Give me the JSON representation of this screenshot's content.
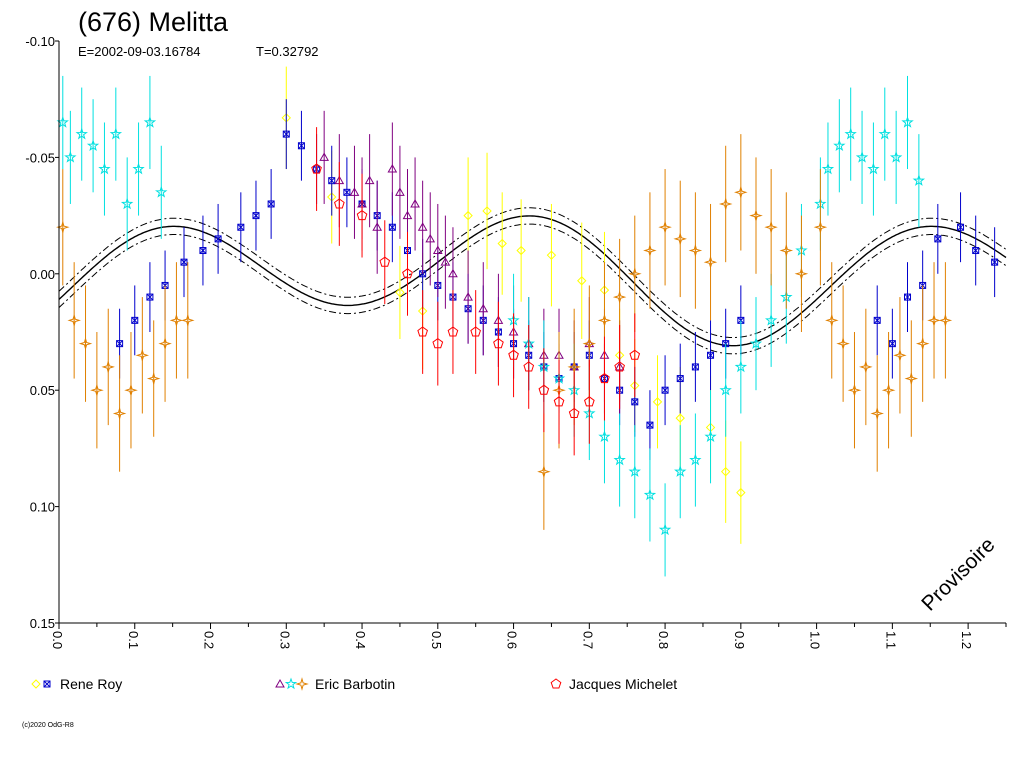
{
  "chart_data": {
    "type": "scatter",
    "title": "(676) Melitta",
    "subtitle_epoch": "E=2002-09-03.16784",
    "subtitle_period": "T=0.32792",
    "stamp": "Provisoire",
    "copyright": "(c)2020 OdG-R8",
    "xlim": [
      0.0,
      1.25
    ],
    "ylim": [
      -0.1,
      0.15
    ],
    "y_inverted": true,
    "x_ticks": [
      "0.0",
      "0.1",
      "0.2",
      "0.3",
      "0.4",
      "0.5",
      "0.6",
      "0.7",
      "0.8",
      "0.9",
      "1.0",
      "1.1",
      "1.2"
    ],
    "y_ticks": [
      "-0.10",
      "-0.05",
      "0.00",
      "0.05",
      "0.10",
      "0.15"
    ],
    "grid": false,
    "legend_position": "bottom",
    "legend": [
      {
        "label": "Rene Roy",
        "markers": [
          {
            "shape": "diamond",
            "color": "#ffff00"
          },
          {
            "shape": "square-x",
            "color": "#0000cc"
          }
        ]
      },
      {
        "label": "Eric Barbotin",
        "markers": [
          {
            "shape": "triangle",
            "color": "#800080"
          },
          {
            "shape": "star",
            "color": "#00e0e0"
          },
          {
            "shape": "star4",
            "color": "#e08000"
          }
        ]
      },
      {
        "label": "Jacques Michelet",
        "markers": [
          {
            "shape": "pentagon",
            "color": "#ff0000"
          }
        ]
      }
    ],
    "fit_curve": {
      "mean": 0.0,
      "harmonics": [
        {
          "n": 1,
          "a": 0.008,
          "b": -0.004
        },
        {
          "n": 2,
          "a": 0.003,
          "b": -0.022
        }
      ],
      "band": 0.0035
    },
    "series": [
      {
        "shape": "diamond",
        "color": "#ffff00",
        "x": [
          0.3,
          0.36,
          0.45,
          0.48,
          0.54,
          0.565,
          0.585,
          0.61,
          0.65,
          0.69,
          0.72,
          0.74,
          0.76,
          0.79,
          0.82,
          0.86,
          0.88,
          0.9
        ],
        "y": [
          -0.067,
          -0.033,
          0.008,
          0.016,
          -0.025,
          -0.027,
          -0.013,
          -0.01,
          -0.008,
          0.003,
          0.007,
          0.035,
          0.048,
          0.055,
          0.062,
          0.066,
          0.085,
          0.094
        ],
        "err": [
          0.022,
          0.02,
          0.02,
          0.025,
          0.025,
          0.025,
          0.022,
          0.022,
          0.022,
          0.025,
          0.025,
          0.02,
          0.02,
          0.02,
          0.022,
          0.022,
          0.022,
          0.022
        ]
      },
      {
        "shape": "square-x",
        "color": "#0000cc",
        "x": [
          0.08,
          0.1,
          0.12,
          0.14,
          0.165,
          0.19,
          0.21,
          0.24,
          0.26,
          0.28,
          0.3,
          0.32,
          0.34,
          0.36,
          0.38,
          0.4,
          0.42,
          0.44,
          0.46,
          0.48,
          0.5,
          0.52,
          0.54,
          0.56,
          0.58,
          0.6,
          0.62,
          0.64,
          0.66,
          0.68,
          0.7,
          0.72,
          0.74,
          0.76,
          0.78,
          0.8,
          0.82,
          0.84,
          0.86,
          0.88,
          0.9,
          1.08,
          1.1,
          1.12,
          1.14,
          1.16,
          1.19,
          1.21,
          1.235
        ],
        "x_repeat_note": "",
        "y": [
          0.03,
          0.02,
          0.01,
          0.005,
          -0.005,
          -0.01,
          -0.015,
          -0.02,
          -0.025,
          -0.03,
          -0.06,
          -0.055,
          -0.045,
          -0.04,
          -0.035,
          -0.03,
          -0.025,
          -0.02,
          -0.01,
          0.0,
          0.005,
          0.01,
          0.015,
          0.02,
          0.025,
          0.03,
          0.035,
          0.04,
          0.045,
          0.04,
          0.035,
          0.045,
          0.05,
          0.055,
          0.065,
          0.05,
          0.045,
          0.04,
          0.035,
          0.03,
          0.02,
          0.02,
          0.03,
          0.01,
          0.005,
          -0.015,
          -0.02,
          -0.01,
          -0.005
        ],
        "err": [
          0.015,
          0.015,
          0.015,
          0.015,
          0.015,
          0.015,
          0.015,
          0.015,
          0.015,
          0.015,
          0.015,
          0.015,
          0.015,
          0.015,
          0.015,
          0.015,
          0.015,
          0.015,
          0.015,
          0.015,
          0.015,
          0.015,
          0.015,
          0.015,
          0.015,
          0.015,
          0.015,
          0.015,
          0.015,
          0.015,
          0.015,
          0.015,
          0.015,
          0.015,
          0.015,
          0.015,
          0.015,
          0.015,
          0.015,
          0.015,
          0.015,
          0.015,
          0.015,
          0.015,
          0.015,
          0.015,
          0.015,
          0.015,
          0.015
        ]
      },
      {
        "shape": "triangle",
        "color": "#800080",
        "x": [
          0.35,
          0.37,
          0.39,
          0.4,
          0.41,
          0.42,
          0.44,
          0.45,
          0.46,
          0.47,
          0.48,
          0.49,
          0.5,
          0.51,
          0.52,
          0.54,
          0.56,
          0.58,
          0.6,
          0.62,
          0.64,
          0.66,
          0.68,
          0.7,
          0.72,
          0.74
        ],
        "y": [
          -0.05,
          -0.04,
          -0.035,
          -0.03,
          -0.04,
          -0.02,
          -0.045,
          -0.035,
          -0.025,
          -0.03,
          -0.02,
          -0.015,
          -0.01,
          -0.005,
          0.0,
          0.01,
          0.015,
          0.02,
          0.025,
          0.03,
          0.035,
          0.035,
          0.04,
          0.03,
          0.035,
          0.04
        ],
        "err": [
          0.02,
          0.02,
          0.02,
          0.02,
          0.02,
          0.02,
          0.02,
          0.02,
          0.02,
          0.02,
          0.02,
          0.02,
          0.02,
          0.02,
          0.02,
          0.02,
          0.02,
          0.02,
          0.02,
          0.02,
          0.02,
          0.02,
          0.02,
          0.02,
          0.02,
          0.02
        ]
      },
      {
        "shape": "star",
        "color": "#00e0e0",
        "x": [
          0.005,
          0.015,
          0.03,
          0.045,
          0.06,
          0.075,
          0.09,
          0.105,
          0.12,
          0.135,
          0.6,
          0.62,
          0.64,
          0.66,
          0.68,
          0.7,
          0.72,
          0.74,
          0.76,
          0.78,
          0.8,
          0.82,
          0.84,
          0.86,
          0.88,
          0.9,
          0.92,
          0.94,
          0.96,
          0.98,
          1.005,
          1.015,
          1.03,
          1.045,
          1.06,
          1.075,
          1.09,
          1.105,
          1.12,
          1.135
        ],
        "y": [
          -0.065,
          -0.05,
          -0.06,
          -0.055,
          -0.045,
          -0.06,
          -0.03,
          -0.045,
          -0.065,
          -0.035,
          0.02,
          0.03,
          0.04,
          0.045,
          0.05,
          0.06,
          0.07,
          0.08,
          0.085,
          0.095,
          0.11,
          0.085,
          0.08,
          0.07,
          0.05,
          0.04,
          0.03,
          0.02,
          0.01,
          -0.01,
          -0.03,
          -0.045,
          -0.055,
          -0.06,
          -0.05,
          -0.045,
          -0.06,
          -0.05,
          -0.065,
          -0.04
        ],
        "err": [
          0.02,
          0.02,
          0.02,
          0.02,
          0.02,
          0.02,
          0.02,
          0.02,
          0.02,
          0.02,
          0.02,
          0.02,
          0.02,
          0.02,
          0.02,
          0.02,
          0.02,
          0.02,
          0.02,
          0.02,
          0.02,
          0.02,
          0.02,
          0.02,
          0.02,
          0.02,
          0.02,
          0.02,
          0.02,
          0.02,
          0.02,
          0.02,
          0.02,
          0.02,
          0.02,
          0.02,
          0.02,
          0.02,
          0.02,
          0.02
        ]
      },
      {
        "shape": "star4",
        "color": "#e08000",
        "x": [
          0.005,
          0.02,
          0.035,
          0.05,
          0.065,
          0.08,
          0.095,
          0.11,
          0.125,
          0.14,
          0.155,
          0.17,
          0.64,
          0.66,
          0.68,
          0.7,
          0.72,
          0.74,
          0.76,
          0.78,
          0.8,
          0.82,
          0.84,
          0.86,
          0.88,
          0.9,
          0.92,
          0.94,
          0.96,
          0.98,
          1.005,
          1.02,
          1.035,
          1.05,
          1.065,
          1.08,
          1.095,
          1.11,
          1.125,
          1.14,
          1.155,
          1.17
        ],
        "y": [
          -0.02,
          0.02,
          0.03,
          0.05,
          0.04,
          0.06,
          0.05,
          0.035,
          0.045,
          0.03,
          0.02,
          0.02,
          0.085,
          0.05,
          0.04,
          0.03,
          0.02,
          0.01,
          0.0,
          -0.01,
          -0.02,
          -0.015,
          -0.01,
          -0.005,
          -0.03,
          -0.035,
          -0.025,
          -0.02,
          -0.01,
          0.0,
          -0.02,
          0.02,
          0.03,
          0.05,
          0.04,
          0.06,
          0.05,
          0.035,
          0.045,
          0.03,
          0.02,
          0.02
        ],
        "err": [
          0.025,
          0.025,
          0.025,
          0.025,
          0.025,
          0.025,
          0.025,
          0.025,
          0.025,
          0.025,
          0.025,
          0.025,
          0.025,
          0.025,
          0.025,
          0.025,
          0.025,
          0.025,
          0.025,
          0.025,
          0.025,
          0.025,
          0.025,
          0.025,
          0.025,
          0.025,
          0.025,
          0.025,
          0.025,
          0.025,
          0.025,
          0.025,
          0.025,
          0.025,
          0.025,
          0.025,
          0.025,
          0.025,
          0.025,
          0.025,
          0.025,
          0.025
        ]
      },
      {
        "shape": "pentagon",
        "color": "#ff0000",
        "x": [
          0.34,
          0.37,
          0.4,
          0.43,
          0.46,
          0.48,
          0.5,
          0.52,
          0.55,
          0.58,
          0.6,
          0.62,
          0.64,
          0.66,
          0.68,
          0.7,
          0.72,
          0.74,
          0.76
        ],
        "y": [
          -0.045,
          -0.03,
          -0.025,
          -0.005,
          0.0,
          0.025,
          0.03,
          0.025,
          0.025,
          0.03,
          0.035,
          0.04,
          0.05,
          0.055,
          0.06,
          0.055,
          0.045,
          0.04,
          0.035
        ],
        "err": [
          0.018,
          0.018,
          0.018,
          0.018,
          0.018,
          0.018,
          0.018,
          0.018,
          0.018,
          0.018,
          0.018,
          0.018,
          0.018,
          0.018,
          0.018,
          0.018,
          0.018,
          0.018,
          0.018
        ]
      }
    ]
  }
}
